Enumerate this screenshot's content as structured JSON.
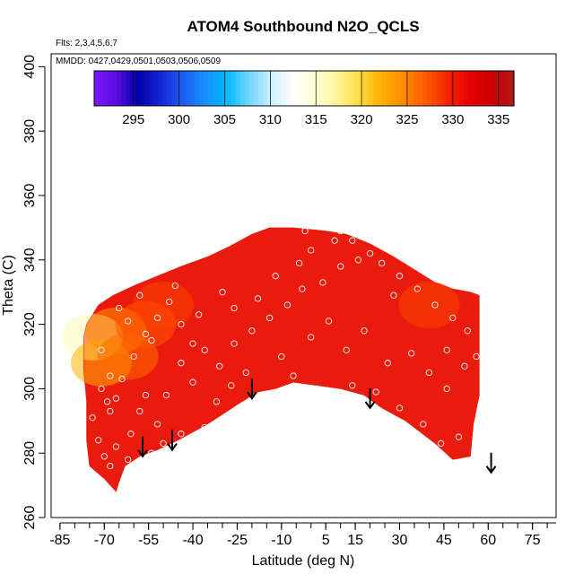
{
  "chart_data": {
    "type": "heatmap",
    "title": "ATOM4 Southbound N2O_QCLS",
    "flights_note": "Flts: 2,3,4,5,6,7",
    "dates_note": "MMDD: 0427,0429,0501,0503,0506,0509",
    "xlabel": "Latitude (deg N)",
    "ylabel": "Theta (C)",
    "xlim": [
      -88,
      83
    ],
    "ylim": [
      260,
      404
    ],
    "xticks": [
      -85,
      -70,
      -55,
      -40,
      -25,
      -10,
      5,
      15,
      30,
      45,
      60,
      75
    ],
    "yticks": [
      260,
      280,
      300,
      320,
      340,
      360,
      380,
      400
    ],
    "colorbar": {
      "ticks": [
        295,
        300,
        305,
        310,
        315,
        320,
        325,
        330,
        335
      ],
      "range": [
        290.7,
        336.7
      ],
      "colors": [
        "#7c16ff",
        "#5a0cdf",
        "#0000aa",
        "#1525d5",
        "#1c5df2",
        "#1a8dff",
        "#00bbff",
        "#6fd6ff",
        "#ccf0ff",
        "#ffffff",
        "#ffffd5",
        "#fff499",
        "#ffdd44",
        "#ffb000",
        "#ff8a00",
        "#ff5a00",
        "#f52500",
        "#e80000",
        "#cc0000",
        "#b01818"
      ]
    },
    "field_color": "#ea1a0c",
    "cover_boundary": {
      "upper": [
        [
          -76,
          320
        ],
        [
          -72,
          326
        ],
        [
          -67,
          329
        ],
        [
          -60,
          332
        ],
        [
          -52,
          335
        ],
        [
          -44,
          338
        ],
        [
          -35,
          341
        ],
        [
          -28,
          344
        ],
        [
          -20,
          348
        ],
        [
          -14,
          350
        ],
        [
          -6,
          350
        ],
        [
          5,
          349
        ],
        [
          12,
          348
        ],
        [
          20,
          345
        ],
        [
          28,
          341
        ],
        [
          35,
          337
        ],
        [
          42,
          333
        ],
        [
          48,
          331
        ],
        [
          54,
          330
        ],
        [
          57,
          329
        ]
      ],
      "lower": [
        [
          57,
          298
        ],
        [
          55,
          289
        ],
        [
          54,
          279
        ],
        [
          48,
          278
        ],
        [
          42,
          283
        ],
        [
          32,
          290
        ],
        [
          24,
          294
        ],
        [
          18,
          298
        ],
        [
          10,
          300
        ],
        [
          2,
          301
        ],
        [
          -6,
          302
        ],
        [
          -12,
          300
        ],
        [
          -18,
          299
        ],
        [
          -25,
          295
        ],
        [
          -35,
          289
        ],
        [
          -45,
          284
        ],
        [
          -52,
          281
        ],
        [
          -58,
          279
        ],
        [
          -63,
          276
        ],
        [
          -65,
          271
        ],
        [
          -66,
          268
        ],
        [
          -70,
          272
        ],
        [
          -75,
          276
        ],
        [
          -76,
          284
        ],
        [
          -76,
          296
        ],
        [
          -77,
          306
        ],
        [
          -77,
          316
        ]
      ]
    },
    "warm_anomalies": [
      {
        "lat": -74,
        "theta": 316,
        "val": 316
      },
      {
        "lat": -71,
        "theta": 308,
        "val": 322
      },
      {
        "lat": -66,
        "theta": 318,
        "val": 324
      },
      {
        "lat": -62,
        "theta": 310,
        "val": 326
      },
      {
        "lat": -56,
        "theta": 320,
        "val": 327
      },
      {
        "lat": -50,
        "theta": 326,
        "val": 328
      },
      {
        "lat": 40,
        "theta": 326,
        "val": 328
      }
    ],
    "sample_points": [
      [
        -74,
        291
      ],
      [
        -71,
        300
      ],
      [
        -69,
        296
      ],
      [
        -68,
        304
      ],
      [
        -66,
        297
      ],
      [
        -64,
        303
      ],
      [
        -72,
        284
      ],
      [
        -70,
        279
      ],
      [
        -68,
        276
      ],
      [
        -66,
        282
      ],
      [
        -61,
        286
      ],
      [
        -58,
        293
      ],
      [
        -56,
        298
      ],
      [
        -52,
        289
      ],
      [
        -49,
        298
      ],
      [
        -44,
        308
      ],
      [
        -40,
        302
      ],
      [
        -36,
        288
      ],
      [
        -32,
        296
      ],
      [
        -27,
        301
      ],
      [
        -60,
        310
      ],
      [
        -56,
        317
      ],
      [
        -52,
        322
      ],
      [
        -48,
        327
      ],
      [
        -44,
        320
      ],
      [
        -40,
        314
      ],
      [
        -36,
        312
      ],
      [
        -31,
        307
      ],
      [
        -26,
        314
      ],
      [
        -20,
        318
      ],
      [
        -14,
        322
      ],
      [
        -8,
        326
      ],
      [
        -3,
        331
      ],
      [
        4,
        333
      ],
      [
        10,
        338
      ],
      [
        16,
        340
      ],
      [
        24,
        339
      ],
      [
        30,
        335
      ],
      [
        36,
        331
      ],
      [
        42,
        326
      ],
      [
        48,
        322
      ],
      [
        53,
        318
      ],
      [
        -65,
        325
      ],
      [
        -58,
        329
      ],
      [
        -46,
        332
      ],
      [
        -30,
        330
      ],
      [
        -18,
        328
      ],
      [
        -4,
        339
      ],
      [
        8,
        346
      ],
      [
        20,
        342
      ],
      [
        -10,
        310
      ],
      [
        0,
        316
      ],
      [
        6,
        321
      ],
      [
        12,
        312
      ],
      [
        18,
        318
      ],
      [
        26,
        308
      ],
      [
        34,
        311
      ],
      [
        40,
        305
      ],
      [
        46,
        300
      ],
      [
        52,
        307
      ],
      [
        -6,
        304
      ],
      [
        2,
        300
      ],
      [
        14,
        301
      ],
      [
        22,
        299
      ],
      [
        30,
        294
      ],
      [
        38,
        289
      ],
      [
        44,
        283
      ],
      [
        50,
        285
      ],
      [
        -22,
        305
      ],
      [
        -16,
        297
      ],
      [
        -44,
        286
      ],
      [
        -50,
        283
      ],
      [
        -54,
        280
      ],
      [
        -62,
        278
      ],
      [
        -68,
        293
      ],
      [
        -71,
        312
      ],
      [
        -62,
        321
      ],
      [
        -54,
        315
      ],
      [
        -38,
        323
      ],
      [
        -26,
        325
      ],
      [
        -12,
        335
      ],
      [
        0,
        343
      ],
      [
        14,
        346
      ],
      [
        28,
        329
      ],
      [
        46,
        312
      ],
      [
        56,
        310
      ],
      [
        -2,
        349
      ],
      [
        10,
        349
      ]
    ],
    "arrows": [
      {
        "lat": -57,
        "theta": 279
      },
      {
        "lat": -47,
        "theta": 281
      },
      {
        "lat": -20,
        "theta": 297
      },
      {
        "lat": 20,
        "theta": 294
      },
      {
        "lat": 61,
        "theta": 274
      }
    ]
  }
}
